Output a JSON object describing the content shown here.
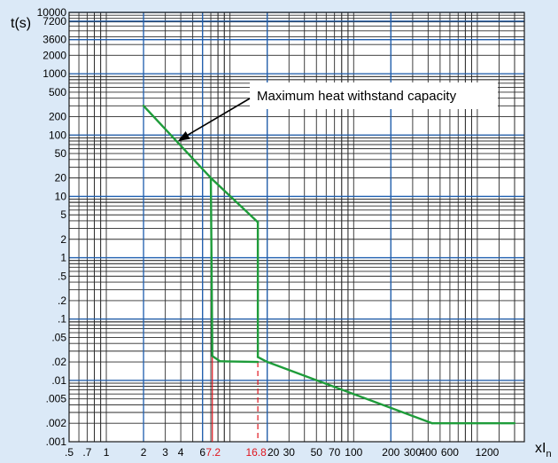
{
  "chart_data": {
    "type": "line",
    "title": "",
    "ylabel": "t(s)",
    "xlabel_main": "xI",
    "xlabel_sub": "n",
    "xscale": "log",
    "yscale": "log",
    "xlim": [
      0.5,
      2400
    ],
    "ylim": [
      0.001,
      10000
    ],
    "grid": true,
    "y_ticks": [
      {
        "v": 10000,
        "label": "10000"
      },
      {
        "v": 7200,
        "label": "7200"
      },
      {
        "v": 3600,
        "label": "3600"
      },
      {
        "v": 2000,
        "label": "2000"
      },
      {
        "v": 1000,
        "label": "1000"
      },
      {
        "v": 500,
        "label": "500"
      },
      {
        "v": 200,
        "label": "200"
      },
      {
        "v": 100,
        "label": "100"
      },
      {
        "v": 50,
        "label": "50"
      },
      {
        "v": 20,
        "label": "20"
      },
      {
        "v": 10,
        "label": "10"
      },
      {
        "v": 5,
        "label": "5"
      },
      {
        "v": 2,
        "label": "2"
      },
      {
        "v": 1,
        "label": "1"
      },
      {
        "v": 0.5,
        "label": ".5"
      },
      {
        "v": 0.2,
        "label": ".2"
      },
      {
        "v": 0.1,
        "label": ".1"
      },
      {
        "v": 0.05,
        "label": ".05"
      },
      {
        "v": 0.02,
        "label": ".02"
      },
      {
        "v": 0.01,
        "label": ".01"
      },
      {
        "v": 0.005,
        "label": ".005"
      },
      {
        "v": 0.002,
        "label": ".002"
      },
      {
        "v": 0.001,
        "label": ".001"
      }
    ],
    "x_ticks": [
      {
        "v": 0.5,
        "label": ".5",
        "color": "black"
      },
      {
        "v": 0.7,
        "label": ".7",
        "color": "black"
      },
      {
        "v": 1,
        "label": "1",
        "color": "black"
      },
      {
        "v": 2,
        "label": "2",
        "color": "black"
      },
      {
        "v": 3,
        "label": "3",
        "color": "black"
      },
      {
        "v": 4,
        "label": "4",
        "color": "black"
      },
      {
        "v": 6,
        "label": "6",
        "color": "black"
      },
      {
        "v": 7.2,
        "label": "7.2",
        "color": "red"
      },
      {
        "v": 16.8,
        "label": "16.8",
        "color": "red"
      },
      {
        "v": 20,
        "label": "20",
        "color": "black"
      },
      {
        "v": 30,
        "label": "30",
        "color": "black"
      },
      {
        "v": 50,
        "label": "50",
        "color": "black"
      },
      {
        "v": 70,
        "label": "70",
        "color": "black"
      },
      {
        "v": 100,
        "label": "100",
        "color": "black"
      },
      {
        "v": 200,
        "label": "200",
        "color": "black"
      },
      {
        "v": 300,
        "label": "300",
        "color": "black"
      },
      {
        "v": 400,
        "label": "400",
        "color": "black"
      },
      {
        "v": 600,
        "label": "600",
        "color": "black"
      },
      {
        "v": 1200,
        "label": "1200",
        "color": "black"
      }
    ],
    "highlight_h": [
      10000,
      7200,
      3600,
      1000,
      100,
      10,
      1,
      0.1,
      0.01
    ],
    "highlight_v": [
      2,
      6,
      20,
      200
    ],
    "red_markers": [
      7.2,
      16.8
    ],
    "series": [
      {
        "color": "#1e9c3a",
        "points": [
          [
            2,
            300
          ],
          [
            7.2,
            20
          ],
          [
            7.2,
            20
          ],
          [
            7.2,
            0.023
          ],
          [
            8.5,
            0.02
          ],
          [
            16.8,
            0.02
          ],
          [
            16.8,
            0.02
          ],
          [
            16.8,
            0.02
          ]
        ]
      }
    ],
    "curve_segments": [
      [
        [
          2.0,
          300
        ],
        [
          7.0,
          20
        ]
      ],
      [
        [
          7.0,
          20
        ],
        [
          16.8,
          3.8
        ]
      ],
      [
        [
          16.8,
          3.8
        ],
        [
          16.8,
          0.024
        ]
      ],
      [
        [
          16.8,
          0.024
        ],
        [
          20,
          0.02
        ]
      ],
      [
        [
          20,
          0.02
        ],
        [
          430,
          0.002
        ]
      ],
      [
        [
          430,
          0.002
        ],
        [
          2000,
          0.002
        ]
      ],
      [
        [
          7.0,
          20
        ],
        [
          7.2,
          0.025
        ]
      ],
      [
        [
          7.2,
          0.025
        ],
        [
          8.3,
          0.0205
        ]
      ],
      [
        [
          8.3,
          0.0205
        ],
        [
          16.8,
          0.02
        ]
      ]
    ],
    "annotation": {
      "text": "Maximum heat withstand capacity",
      "target": [
        3.8,
        80
      ]
    }
  }
}
